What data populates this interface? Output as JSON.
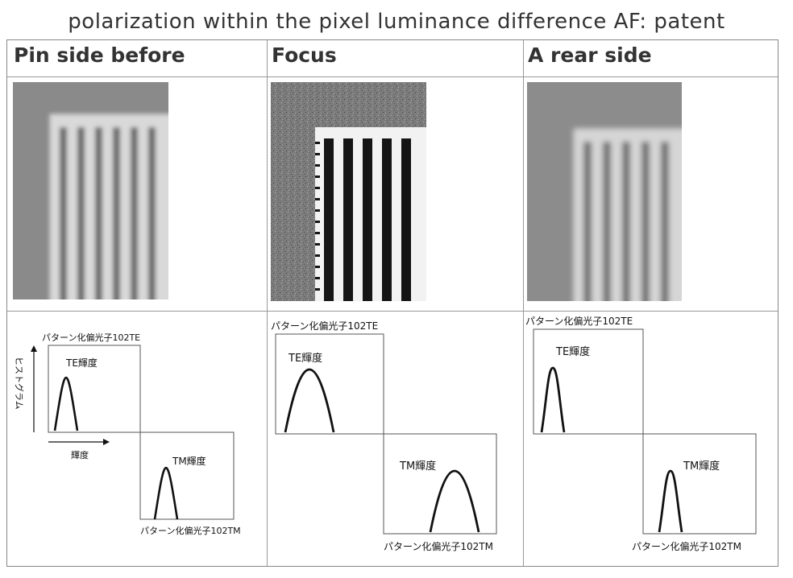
{
  "caption": "polarization within the pixel luminance difference AF: patent",
  "headers": [
    "Pin side before",
    "Focus",
    "A rear side"
  ],
  "diagram_labels": {
    "te_polarizer": "パターン化偏光子102TE",
    "tm_polarizer": "パターン化偏光子102TM",
    "te_luminance": "TE輝度",
    "tm_luminance": "TM輝度",
    "histogram_axis": "ヒストグラム",
    "luminance_axis": "輝度"
  },
  "panels": [
    {
      "name": "pin-side-before",
      "te_peak_width": "narrow",
      "tm_peak_width": "narrow"
    },
    {
      "name": "focus",
      "te_peak_width": "wide",
      "tm_peak_width": "wide"
    },
    {
      "name": "rear-side",
      "te_peak_width": "narrow",
      "tm_peak_width": "narrow"
    }
  ],
  "colors": {
    "border": "#999999",
    "text": "#333333",
    "curve": "#111111"
  }
}
